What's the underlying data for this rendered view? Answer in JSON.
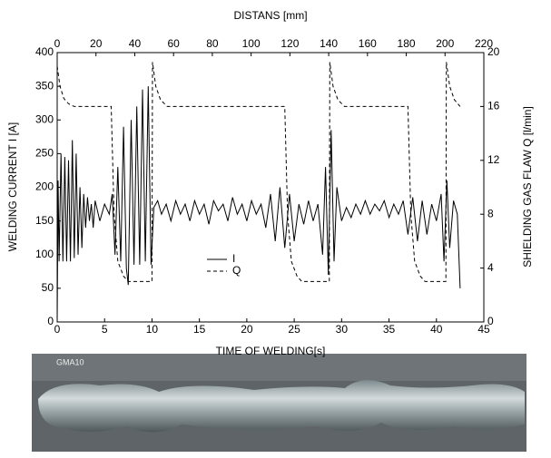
{
  "chart_data": {
    "type": "line",
    "xlabel": "TIME OF WELDING[s]",
    "x2label": "DISTANS [mm]",
    "ylabel": "WELDING CURRENT I [A]",
    "y2label": "SHIELDING GAS FLAW Q [l/min]",
    "xlim": [
      0,
      45
    ],
    "xticks": [
      0,
      5,
      10,
      15,
      20,
      25,
      30,
      35,
      40,
      45
    ],
    "x2lim": [
      0,
      220
    ],
    "x2ticks": [
      0,
      20,
      40,
      60,
      80,
      100,
      120,
      140,
      160,
      180,
      200,
      220
    ],
    "ylim": [
      0,
      400
    ],
    "yticks": [
      0,
      50,
      100,
      150,
      200,
      250,
      300,
      350,
      400
    ],
    "y2lim": [
      0,
      20
    ],
    "y2ticks": [
      0,
      4,
      8,
      12,
      16,
      20
    ],
    "series": [
      {
        "name": "I",
        "color": "#000000",
        "line_style": "solid",
        "x": [
          0,
          0.1,
          0.2,
          0.4,
          0.6,
          0.8,
          1.0,
          1.2,
          1.4,
          1.6,
          1.8,
          2.0,
          2.2,
          2.4,
          2.6,
          2.8,
          3.0,
          3.2,
          3.4,
          3.6,
          3.8,
          4.0,
          4.5,
          5.0,
          5.5,
          5.8,
          6.1,
          6.4,
          6.7,
          7.0,
          7.3,
          7.5,
          7.8,
          8.1,
          8.4,
          8.7,
          9.0,
          9.3,
          9.6,
          9.9,
          10.2,
          10.6,
          11,
          11.5,
          12,
          12.5,
          13,
          13.5,
          14,
          14.5,
          15,
          15.5,
          16,
          16.5,
          17,
          17.5,
          18,
          18.5,
          19,
          19.5,
          20,
          20.5,
          21,
          21.5,
          22,
          22.5,
          23,
          23.5,
          24,
          24.5,
          25,
          25.5,
          26,
          26.5,
          27,
          27.5,
          28,
          28.3,
          28.6,
          28.9,
          29.2,
          29.5,
          30,
          30.5,
          31,
          31.5,
          32,
          32.5,
          33,
          33.5,
          34,
          34.5,
          35,
          35.5,
          36,
          36.5,
          37,
          37.5,
          38,
          38.5,
          39,
          39.5,
          40,
          40.5,
          40.8,
          41.1,
          41.4,
          41.8,
          42.2,
          42.5
        ],
        "values": [
          0,
          210,
          90,
          250,
          90,
          245,
          90,
          240,
          90,
          270,
          95,
          250,
          100,
          200,
          110,
          190,
          140,
          185,
          150,
          175,
          140,
          180,
          150,
          175,
          160,
          190,
          100,
          230,
          90,
          290,
          80,
          55,
          300,
          85,
          320,
          85,
          345,
          90,
          350,
          85,
          170,
          180,
          160,
          175,
          150,
          180,
          160,
          175,
          150,
          180,
          160,
          175,
          145,
          180,
          165,
          175,
          150,
          185,
          160,
          175,
          150,
          180,
          160,
          175,
          140,
          190,
          120,
          200,
          110,
          190,
          120,
          175,
          145,
          180,
          150,
          175,
          100,
          230,
          70,
          285,
          90,
          200,
          150,
          170,
          155,
          175,
          160,
          180,
          160,
          175,
          165,
          180,
          155,
          175,
          160,
          180,
          130,
          185,
          120,
          180,
          130,
          175,
          150,
          190,
          90,
          210,
          110,
          180,
          160,
          50
        ]
      },
      {
        "name": "Q",
        "color": "#000000",
        "line_style": "dashed",
        "axis": "y2",
        "x": [
          0,
          0.3,
          0.7,
          1.2,
          1.8,
          5.7,
          6.0,
          6.4,
          7.0,
          7.5,
          10.0,
          10.05,
          10.4,
          10.9,
          11.6,
          24.0,
          24.3,
          24.7,
          25.3,
          25.8,
          28.7,
          28.75,
          29.1,
          29.6,
          30.3,
          37.0,
          37.3,
          37.7,
          38.3,
          38.8,
          41.0,
          41.05,
          41.4,
          41.9,
          42.5
        ],
        "values": [
          19,
          17.5,
          16.6,
          16.2,
          16,
          16,
          8,
          4.5,
          3.4,
          3,
          3,
          19.3,
          17.5,
          16.5,
          16,
          16,
          8,
          4.5,
          3.4,
          3,
          3,
          19.3,
          17.5,
          16.5,
          16,
          16,
          8,
          4.5,
          3.4,
          3,
          3,
          19.3,
          17.5,
          16.5,
          16
        ]
      }
    ],
    "legend": "lower-center"
  },
  "image": {
    "label": "GMA10"
  }
}
